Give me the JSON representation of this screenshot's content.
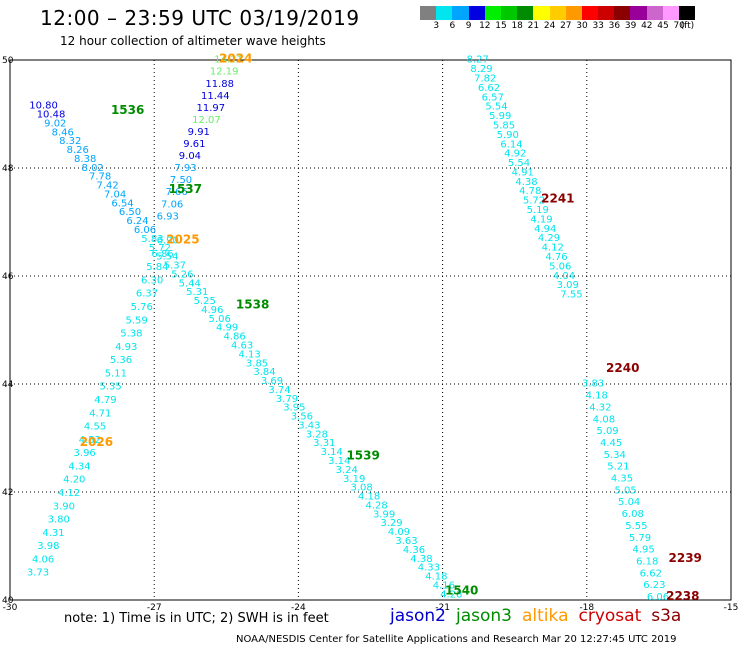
{
  "title": "12:00 – 23:59 UTC 03/19/2019",
  "subtitle": "12 hour collection of altimeter wave heights",
  "note": "note:  1) Time is in UTC;  2) SWH is in feet",
  "credits": "NOAA/NESDIS Center for Satellite Applications and Research     Mar 20 12:27:45 UTC 2019",
  "colorbar": {
    "colors": [
      "#808080",
      "#00e5ee",
      "#00a5ff",
      "#0000e0",
      "#00ee00",
      "#00c800",
      "#008c00",
      "#ffff00",
      "#ffcc00",
      "#ff9900",
      "#ff0000",
      "#cc0000",
      "#8b0000",
      "#990099",
      "#cc66cc",
      "#ff99ff",
      "#000000"
    ],
    "labels": [
      "3",
      "6",
      "9",
      "12",
      "15",
      "18",
      "21",
      "24",
      "27",
      "30",
      "33",
      "36",
      "39",
      "42",
      "45",
      "70",
      "(ft)"
    ]
  },
  "legend": [
    {
      "name": "jason2",
      "color": "#0000cc"
    },
    {
      "name": "jason3",
      "color": "#008c00"
    },
    {
      "name": "altika",
      "color": "#ff9900"
    },
    {
      "name": "cryosat",
      "color": "#cc0000"
    },
    {
      "name": "s3a",
      "color": "#8b0000"
    }
  ],
  "axes": {
    "lon_ticks": [
      "-30",
      "-27",
      "-24",
      "-21",
      "-18",
      "-15"
    ],
    "lat_ticks": [
      "50",
      "48",
      "46",
      "44",
      "42",
      "40"
    ],
    "lon_range": [
      -30,
      -15
    ],
    "lat_range": [
      40,
      50
    ]
  },
  "passes": [
    {
      "id": "1536",
      "color": "#008c00",
      "lon": -27.9,
      "lat": 49.0
    },
    {
      "id": "1537",
      "color": "#008c00",
      "lon": -26.7,
      "lat": 47.54
    },
    {
      "id": "1538",
      "color": "#008c00",
      "lon": -25.3,
      "lat": 45.4
    },
    {
      "id": "1539",
      "color": "#008c00",
      "lon": -23.0,
      "lat": 42.6
    },
    {
      "id": "1540",
      "color": "#008c00",
      "lon": -20.95,
      "lat": 40.1
    },
    {
      "id": "2024",
      "color": "#ff9900",
      "lon": -25.65,
      "lat": 49.95
    },
    {
      "id": "2025",
      "color": "#ff9900",
      "lon": -26.75,
      "lat": 46.6
    },
    {
      "id": "2026",
      "color": "#ff9900",
      "lon": -28.55,
      "lat": 42.85
    },
    {
      "id": "2238",
      "color": "#8b0000",
      "lon": -16.35,
      "lat": 40.0
    },
    {
      "id": "2239",
      "color": "#8b0000",
      "lon": -16.3,
      "lat": 40.7
    },
    {
      "id": "2240",
      "color": "#8b0000",
      "lon": -17.6,
      "lat": 44.22
    },
    {
      "id": "2241",
      "color": "#8b0000",
      "lon": -18.95,
      "lat": 47.36
    }
  ],
  "tracks": [
    {
      "name": "jason3-descending",
      "start": [
        -29.6,
        49.1
      ],
      "end": [
        -21.05,
        40.05
      ],
      "values": [
        {
          "v": "10.80",
          "c": "#0000e0"
        },
        {
          "v": "10.48",
          "c": "#0000e0"
        },
        {
          "v": "9.02",
          "c": "#00a5ff"
        },
        {
          "v": "8.46",
          "c": "#00a5ff"
        },
        {
          "v": "8.32",
          "c": "#00a5ff"
        },
        {
          "v": "8.26",
          "c": "#00a5ff"
        },
        {
          "v": "8.38",
          "c": "#00a5ff"
        },
        {
          "v": "8.02",
          "c": "#00a5ff"
        },
        {
          "v": "7.78",
          "c": "#00a5ff"
        },
        {
          "v": "7.42",
          "c": "#00a5ff"
        },
        {
          "v": "7.04",
          "c": "#00a5ff"
        },
        {
          "v": "6.54",
          "c": "#00a5ff"
        },
        {
          "v": "6.50",
          "c": "#00a5ff"
        },
        {
          "v": "6.24",
          "c": "#00a5ff"
        },
        {
          "v": "6.06",
          "c": "#00a5ff"
        },
        {
          "v": "5.83",
          "c": "#00e5ee"
        },
        {
          "v": "5.72",
          "c": "#00e5ee"
        },
        {
          "v": "5.54",
          "c": "#00e5ee"
        },
        {
          "v": "5.37",
          "c": "#00e5ee"
        },
        {
          "v": "5.26",
          "c": "#00e5ee"
        },
        {
          "v": "5.44",
          "c": "#00e5ee"
        },
        {
          "v": "5.31",
          "c": "#00e5ee"
        },
        {
          "v": "5.25",
          "c": "#00e5ee"
        },
        {
          "v": "4.96",
          "c": "#00e5ee"
        },
        {
          "v": "5.06",
          "c": "#00e5ee"
        },
        {
          "v": "4.99",
          "c": "#00e5ee"
        },
        {
          "v": "4.86",
          "c": "#00e5ee"
        },
        {
          "v": "4.63",
          "c": "#00e5ee"
        },
        {
          "v": "4.13",
          "c": "#00e5ee"
        },
        {
          "v": "3.85",
          "c": "#00e5ee"
        },
        {
          "v": "3.84",
          "c": "#00e5ee"
        },
        {
          "v": "3.69",
          "c": "#00e5ee"
        },
        {
          "v": "3.74",
          "c": "#00e5ee"
        },
        {
          "v": "3.79",
          "c": "#00e5ee"
        },
        {
          "v": "3.95",
          "c": "#00e5ee"
        },
        {
          "v": "3.56",
          "c": "#00e5ee"
        },
        {
          "v": "3.43",
          "c": "#00e5ee"
        },
        {
          "v": "3.28",
          "c": "#00e5ee"
        },
        {
          "v": "3.31",
          "c": "#00e5ee"
        },
        {
          "v": "3.14",
          "c": "#00e5ee"
        },
        {
          "v": "3.14",
          "c": "#00e5ee"
        },
        {
          "v": "3.24",
          "c": "#00e5ee"
        },
        {
          "v": "3.19",
          "c": "#00e5ee"
        },
        {
          "v": "3.08",
          "c": "#00e5ee"
        },
        {
          "v": "4.18",
          "c": "#00e5ee"
        },
        {
          "v": "4.28",
          "c": "#00e5ee"
        },
        {
          "v": "3.99",
          "c": "#00e5ee"
        },
        {
          "v": "3.29",
          "c": "#00e5ee"
        },
        {
          "v": "4.09",
          "c": "#00e5ee"
        },
        {
          "v": "3.63",
          "c": "#00e5ee"
        },
        {
          "v": "4.36",
          "c": "#00e5ee"
        },
        {
          "v": "4.38",
          "c": "#00e5ee"
        },
        {
          "v": "4.33",
          "c": "#00e5ee"
        },
        {
          "v": "4.18",
          "c": "#00e5ee"
        },
        {
          "v": "4.16",
          "c": "#00e5ee"
        },
        {
          "v": "4.28",
          "c": "#00e5ee"
        }
      ]
    },
    {
      "name": "altika-2024-descending",
      "start": [
        -25.75,
        49.95
      ],
      "end": [
        -26.95,
        47.05
      ],
      "values": [
        {
          "v": "14.21",
          "c": "#66ee66"
        },
        {
          "v": "12.19",
          "c": "#66ee66"
        },
        {
          "v": "11.88",
          "c": "#0000e0"
        },
        {
          "v": "11.44",
          "c": "#0000e0"
        },
        {
          "v": "11.97",
          "c": "#0000e0"
        },
        {
          "v": "12.07",
          "c": "#66ee66"
        },
        {
          "v": "9.91",
          "c": "#0000e0"
        },
        {
          "v": "9.61",
          "c": "#0000e0"
        },
        {
          "v": "9.04",
          "c": "#0000e0"
        },
        {
          "v": "7.93",
          "c": "#00a5ff"
        },
        {
          "v": "7.50",
          "c": "#00a5ff"
        },
        {
          "v": "7.66",
          "c": "#00a5ff"
        },
        {
          "v": "7.06",
          "c": "#00a5ff"
        },
        {
          "v": "6.93",
          "c": "#00a5ff"
        }
      ]
    },
    {
      "name": "altika-2026-ascending",
      "start": [
        -29.65,
        40.45
      ],
      "end": [
        -26.95,
        46.6
      ],
      "values": [
        {
          "v": "3.73",
          "c": "#00e5ee"
        },
        {
          "v": "4.06",
          "c": "#00e5ee"
        },
        {
          "v": "3.98",
          "c": "#00e5ee"
        },
        {
          "v": "4.31",
          "c": "#00e5ee"
        },
        {
          "v": "3.80",
          "c": "#00e5ee"
        },
        {
          "v": "3.90",
          "c": "#00e5ee"
        },
        {
          "v": "4.12",
          "c": "#00e5ee"
        },
        {
          "v": "4.20",
          "c": "#00e5ee"
        },
        {
          "v": "4.34",
          "c": "#00e5ee"
        },
        {
          "v": "3.96",
          "c": "#00e5ee"
        },
        {
          "v": "4.52",
          "c": "#00e5ee"
        },
        {
          "v": "4.55",
          "c": "#00e5ee"
        },
        {
          "v": "4.71",
          "c": "#00e5ee"
        },
        {
          "v": "4.79",
          "c": "#00e5ee"
        },
        {
          "v": "5.35",
          "c": "#00e5ee"
        },
        {
          "v": "5.11",
          "c": "#00e5ee"
        },
        {
          "v": "5.36",
          "c": "#00e5ee"
        },
        {
          "v": "4.93",
          "c": "#00e5ee"
        },
        {
          "v": "5.38",
          "c": "#00e5ee"
        },
        {
          "v": "5.59",
          "c": "#00e5ee"
        },
        {
          "v": "5.76",
          "c": "#00e5ee"
        },
        {
          "v": "6.37",
          "c": "#00e5ee"
        },
        {
          "v": "6.30",
          "c": "#00e5ee"
        },
        {
          "v": "5.84",
          "c": "#00e5ee"
        },
        {
          "v": "6.86",
          "c": "#00e5ee"
        },
        {
          "v": "6.90",
          "c": "#00e5ee"
        }
      ]
    },
    {
      "name": "cryosat-2241-descending",
      "start": [
        -20.5,
        49.95
      ],
      "end": [
        -18.55,
        45.6
      ],
      "values": [
        {
          "v": "8.27",
          "c": "#00e5ee"
        },
        {
          "v": "8.29",
          "c": "#00e5ee"
        },
        {
          "v": "7.82",
          "c": "#00e5ee"
        },
        {
          "v": "6.62",
          "c": "#00e5ee"
        },
        {
          "v": "6.57",
          "c": "#00e5ee"
        },
        {
          "v": "5.54",
          "c": "#00e5ee"
        },
        {
          "v": "5.99",
          "c": "#00e5ee"
        },
        {
          "v": "5.85",
          "c": "#00e5ee"
        },
        {
          "v": "5.90",
          "c": "#00e5ee"
        },
        {
          "v": "6.14",
          "c": "#00e5ee"
        },
        {
          "v": "4.92",
          "c": "#00e5ee"
        },
        {
          "v": "5.54",
          "c": "#00e5ee"
        },
        {
          "v": "4.91",
          "c": "#00e5ee"
        },
        {
          "v": "4.38",
          "c": "#00e5ee"
        },
        {
          "v": "4.78",
          "c": "#00e5ee"
        },
        {
          "v": "5.72",
          "c": "#00e5ee"
        },
        {
          "v": "5.19",
          "c": "#00e5ee"
        },
        {
          "v": "4.19",
          "c": "#00e5ee"
        },
        {
          "v": "4.94",
          "c": "#00e5ee"
        },
        {
          "v": "4.29",
          "c": "#00e5ee"
        },
        {
          "v": "4.12",
          "c": "#00e5ee"
        },
        {
          "v": "4.76",
          "c": "#00e5ee"
        },
        {
          "v": "5.06",
          "c": "#00e5ee"
        },
        {
          "v": "4.04",
          "c": "#00e5ee"
        },
        {
          "v": "3.09",
          "c": "#00e5ee"
        },
        {
          "v": "7.55",
          "c": "#00e5ee"
        }
      ]
    },
    {
      "name": "cryosat-2240-descending",
      "start": [
        -18.1,
        43.95
      ],
      "end": [
        -16.75,
        40.0
      ],
      "values": [
        {
          "v": "3.83",
          "c": "#00e5ee"
        },
        {
          "v": "4.18",
          "c": "#00e5ee"
        },
        {
          "v": "4.32",
          "c": "#00e5ee"
        },
        {
          "v": "4.08",
          "c": "#00e5ee"
        },
        {
          "v": "5.09",
          "c": "#00e5ee"
        },
        {
          "v": "4.45",
          "c": "#00e5ee"
        },
        {
          "v": "5.34",
          "c": "#00e5ee"
        },
        {
          "v": "5.21",
          "c": "#00e5ee"
        },
        {
          "v": "4.35",
          "c": "#00e5ee"
        },
        {
          "v": "5.05",
          "c": "#00e5ee"
        },
        {
          "v": "5.04",
          "c": "#00e5ee"
        },
        {
          "v": "6.08",
          "c": "#00e5ee"
        },
        {
          "v": "5.55",
          "c": "#00e5ee"
        },
        {
          "v": "5.79",
          "c": "#00e5ee"
        },
        {
          "v": "4.95",
          "c": "#00e5ee"
        },
        {
          "v": "6.18",
          "c": "#00e5ee"
        },
        {
          "v": "6.62",
          "c": "#00e5ee"
        },
        {
          "v": "6.23",
          "c": "#00e5ee"
        },
        {
          "v": "6.06",
          "c": "#00e5ee"
        }
      ]
    }
  ]
}
